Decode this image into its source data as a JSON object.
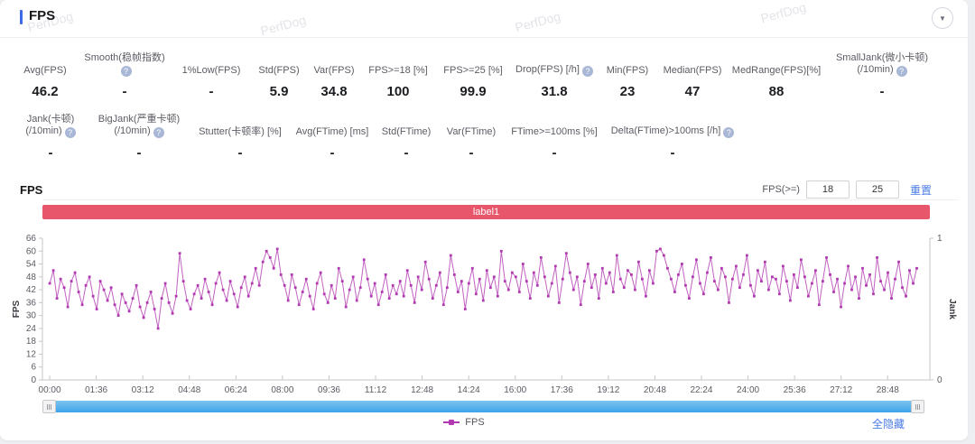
{
  "header": {
    "title": "FPS",
    "collapse_icon": "▼"
  },
  "watermark": "PerfDog",
  "metrics": {
    "row1": [
      {
        "label_lines": [
          "Avg(FPS)"
        ],
        "help": false,
        "value": "46.2"
      },
      {
        "label_lines": [
          "Smooth(稳帧指数)"
        ],
        "help": true,
        "value": "-"
      },
      {
        "label_lines": [
          "1%Low(FPS)"
        ],
        "help": false,
        "value": "-"
      },
      {
        "label_lines": [
          "Std(FPS)"
        ],
        "help": false,
        "value": "5.9"
      },
      {
        "label_lines": [
          "Var(FPS)"
        ],
        "help": false,
        "value": "34.8"
      },
      {
        "label_lines": [
          "FPS>=18 [%]"
        ],
        "help": false,
        "value": "100"
      },
      {
        "label_lines": [
          "FPS>=25 [%]"
        ],
        "help": false,
        "value": "99.9"
      },
      {
        "label_lines": [
          "Drop(FPS) [/h]"
        ],
        "help": true,
        "value": "31.8"
      },
      {
        "label_lines": [
          "Min(FPS)"
        ],
        "help": false,
        "value": "23"
      },
      {
        "label_lines": [
          "Median(FPS)"
        ],
        "help": false,
        "value": "47"
      },
      {
        "label_lines": [
          "MedRange(FPS)[%]"
        ],
        "help": false,
        "value": "88"
      },
      {
        "label_lines": [
          "SmallJank(微小卡顿)",
          "(/10min)"
        ],
        "help": true,
        "value": "-"
      }
    ],
    "row2": [
      {
        "label_lines": [
          "Jank(卡顿)",
          "(/10min)"
        ],
        "help": true,
        "value": "-"
      },
      {
        "label_lines": [
          "BigJank(严重卡顿)",
          "(/10min)"
        ],
        "help": true,
        "value": "-"
      },
      {
        "label_lines": [
          "Stutter(卡顿率) [%]"
        ],
        "help": false,
        "value": "-"
      },
      {
        "label_lines": [
          "Avg(FTime) [ms]"
        ],
        "help": false,
        "value": "-"
      },
      {
        "label_lines": [
          "Std(FTime)"
        ],
        "help": false,
        "value": "-"
      },
      {
        "label_lines": [
          "Var(FTime)"
        ],
        "help": false,
        "value": "-"
      },
      {
        "label_lines": [
          "FTime>=100ms [%]"
        ],
        "help": false,
        "value": "-"
      },
      {
        "label_lines": [
          "Delta(FTime)>100ms [/h]"
        ],
        "help": true,
        "value": "-"
      }
    ]
  },
  "chart_section": {
    "title": "FPS",
    "threshold_label": "FPS(>=)",
    "threshold_inputs": [
      "18",
      "25"
    ],
    "reset_label": "重置",
    "banner_label": "label1",
    "banner_color": "#e8566b",
    "hide_all_label": "全隐藏",
    "legend": [
      {
        "name": "FPS",
        "color": "#b13ab1"
      }
    ]
  },
  "chart_data": {
    "type": "line",
    "title": "FPS over time",
    "series_name": "FPS",
    "color": "#b13ab1",
    "marker": "square",
    "grid": false,
    "legend_position": "bottom-center",
    "x_ticks": [
      "00:00",
      "01:36",
      "03:12",
      "04:48",
      "06:24",
      "08:00",
      "09:36",
      "11:12",
      "12:48",
      "14:24",
      "16:00",
      "17:36",
      "19:12",
      "20:48",
      "22:24",
      "24:00",
      "25:36",
      "27:12",
      "28:48"
    ],
    "x_tick_interval_hours": 1.6,
    "duration_hours": 29.8,
    "y_left": {
      "label": "FPS",
      "min": 0,
      "max": 66,
      "ticks": [
        0,
        6,
        12,
        18,
        24,
        30,
        36,
        42,
        48,
        54,
        60,
        66
      ]
    },
    "y_right": {
      "label": "Jank",
      "min": 0,
      "max": 1,
      "ticks": [
        0,
        1
      ]
    },
    "values": [
      45,
      51,
      38,
      47,
      43,
      34,
      46,
      50,
      41,
      35,
      44,
      48,
      39,
      33,
      46,
      42,
      37,
      43,
      35,
      30,
      40,
      36,
      32,
      38,
      44,
      34,
      29,
      36,
      41,
      33,
      24,
      38,
      45,
      36,
      31,
      39,
      59,
      46,
      37,
      33,
      40,
      44,
      38,
      47,
      41,
      35,
      45,
      50,
      42,
      37,
      46,
      40,
      34,
      43,
      48,
      39,
      45,
      52,
      44,
      55,
      60,
      57,
      52,
      61,
      49,
      44,
      37,
      49,
      43,
      35,
      41,
      47,
      39,
      33,
      45,
      50,
      40,
      36,
      44,
      38,
      52,
      46,
      34,
      42,
      48,
      37,
      43,
      56,
      47,
      39,
      45,
      35,
      41,
      49,
      38,
      44,
      40,
      46,
      39,
      51,
      44,
      36,
      48,
      42,
      55,
      47,
      38,
      44,
      50,
      35,
      43,
      58,
      49,
      41,
      46,
      33,
      45,
      52,
      40,
      47,
      37,
      51,
      43,
      48,
      39,
      60,
      46,
      42,
      50,
      48,
      41,
      54,
      46,
      38,
      50,
      44,
      57,
      48,
      39,
      45,
      53,
      36,
      47,
      59,
      50,
      42,
      48,
      35,
      46,
      54,
      43,
      49,
      38,
      52,
      45,
      50,
      41,
      58,
      47,
      43,
      51,
      49,
      42,
      55,
      47,
      39,
      51,
      45,
      60,
      61,
      58,
      52,
      47,
      41,
      49,
      54,
      44,
      38,
      48,
      56,
      45,
      40,
      50,
      57,
      46,
      42,
      52,
      48,
      36,
      47,
      53,
      43,
      49,
      58,
      44,
      39,
      51,
      46,
      55,
      42,
      48,
      47,
      40,
      53,
      46,
      37,
      49,
      43,
      56,
      48,
      39,
      45,
      51,
      35,
      46,
      57,
      49,
      41,
      47,
      34,
      45,
      53,
      42,
      48,
      38,
      52,
      44,
      49,
      40,
      57,
      46,
      42,
      50,
      38,
      47,
      55,
      43,
      39,
      51,
      45,
      52
    ]
  }
}
